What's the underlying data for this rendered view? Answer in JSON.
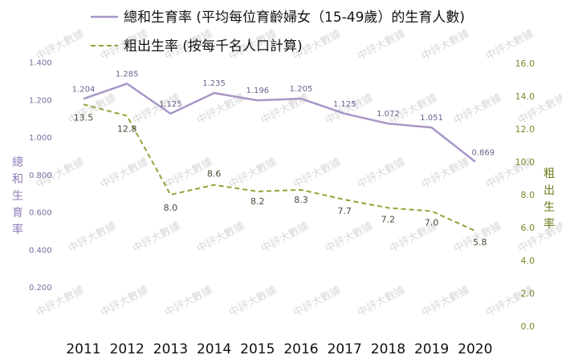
{
  "chart_data": {
    "type": "line",
    "x": [
      "2011",
      "2012",
      "2013",
      "2014",
      "2015",
      "2016",
      "2017",
      "2018",
      "2019",
      "2020"
    ],
    "series": [
      {
        "name": "總和生育率 (平均每位育齡婦女（15-49歲）的生育人數)",
        "axis": "left",
        "values": [
          1.204,
          1.285,
          1.125,
          1.235,
          1.196,
          1.205,
          1.125,
          1.072,
          1.051,
          0.869
        ],
        "labels": [
          "1.204",
          "1.285",
          "1.125",
          "1.235",
          "1.196",
          "1.205",
          "1.125",
          "1.072",
          "1.051",
          "0.869"
        ],
        "color": "#a896c8",
        "style": "solid"
      },
      {
        "name": "粗出生率 (按每千名人口計算)",
        "axis": "right",
        "values": [
          13.5,
          12.8,
          8.0,
          8.6,
          8.2,
          8.3,
          7.7,
          7.2,
          7.0,
          5.8
        ],
        "labels": [
          "13.5",
          "12.8",
          "8.0",
          "8.6",
          "8.2",
          "8.3",
          "7.7",
          "7.2",
          "7.0",
          "5.8"
        ],
        "color": "#8aa83a",
        "style": "dashed"
      }
    ],
    "y_left": {
      "title": "總和生育率",
      "ylim": [
        0,
        1.4
      ],
      "ticks": [
        "0.200",
        "0.400",
        "0.600",
        "0.800",
        "1.000",
        "1.200",
        "1.400"
      ],
      "tick_values": [
        0.2,
        0.4,
        0.6,
        0.8,
        1.0,
        1.2,
        1.4
      ]
    },
    "y_right": {
      "title": "粗出生率",
      "ylim": [
        0,
        16
      ],
      "ticks": [
        "0.0",
        "2.0",
        "4.0",
        "6.0",
        "8.0",
        "10.0",
        "12.0",
        "14.0",
        "16.0"
      ],
      "tick_values": [
        0,
        2,
        4,
        6,
        8,
        10,
        12,
        14,
        16
      ]
    },
    "legend_position": "top",
    "grid": false,
    "watermark": "中評大數據"
  }
}
